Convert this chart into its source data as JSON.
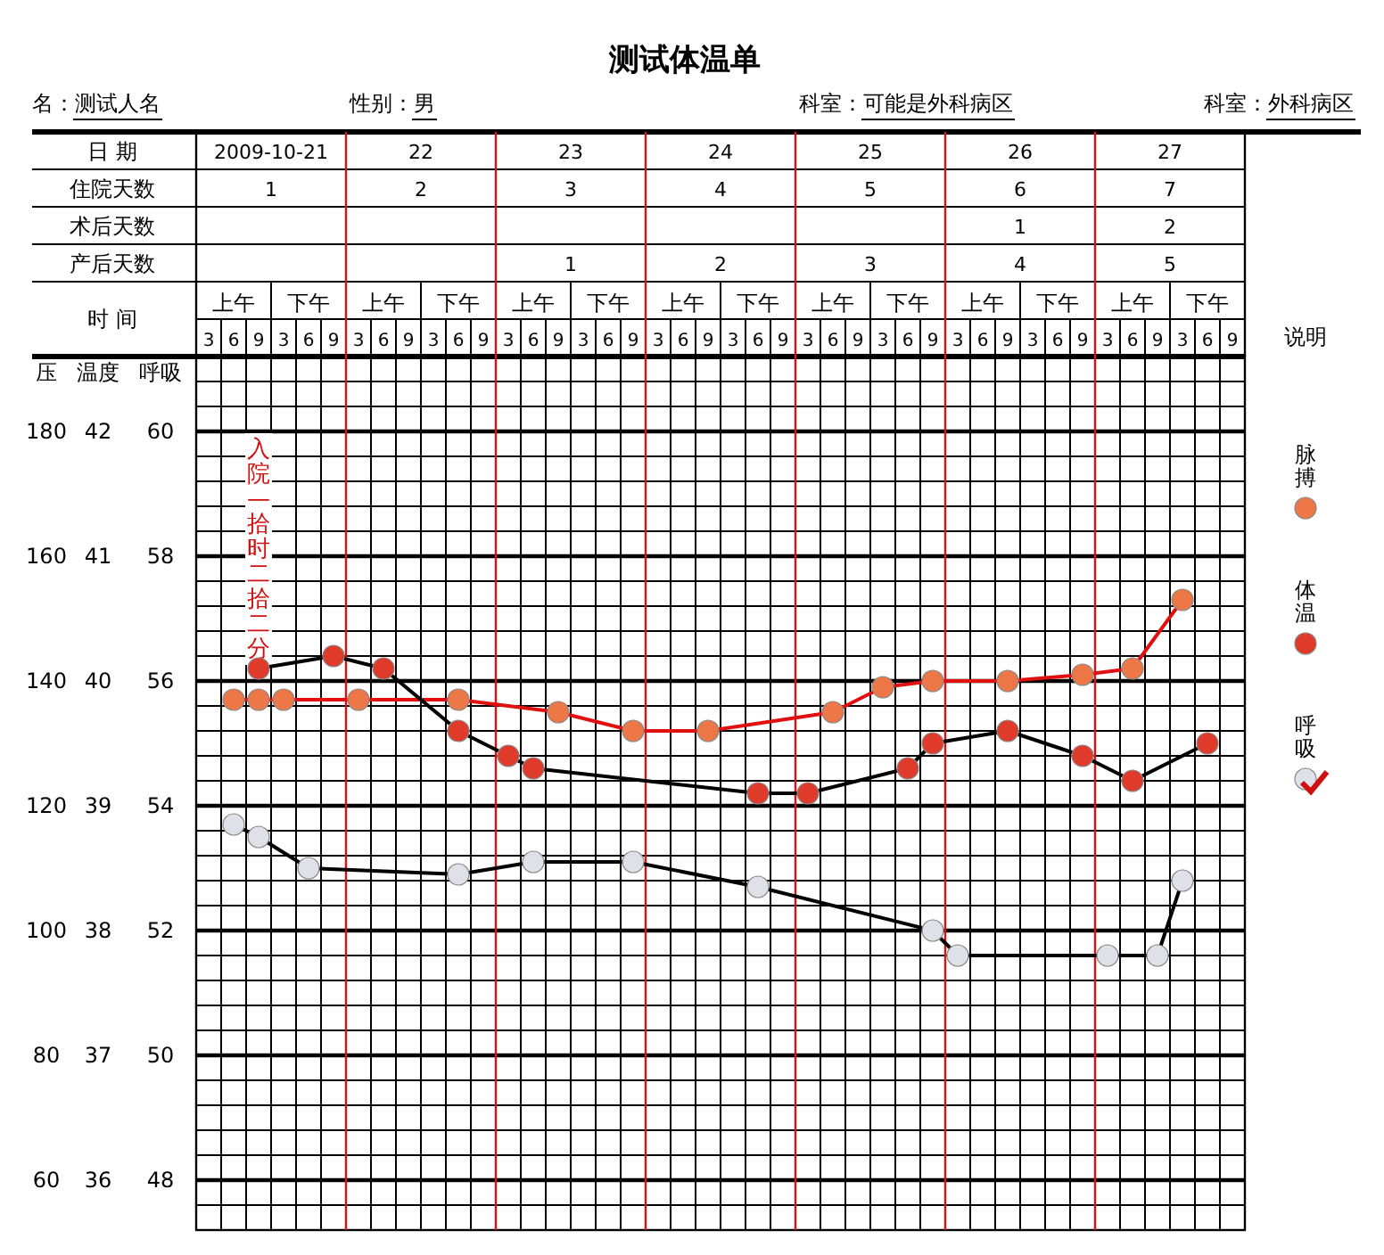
{
  "chart_data": {
    "type": "line",
    "title": "测试体温单",
    "categories": [
      "3",
      "6",
      "9",
      "3",
      "6",
      "9",
      "3",
      "6",
      "9",
      "3",
      "6",
      "9",
      "3",
      "6",
      "9",
      "3",
      "6",
      "9",
      "3",
      "6",
      "9",
      "3",
      "6",
      "9",
      "3",
      "6",
      "9",
      "3",
      "6",
      "9",
      "3",
      "6",
      "9",
      "3",
      "6",
      "9",
      "3",
      "6",
      "9",
      "3",
      "6",
      "9"
    ],
    "series": [
      {
        "name": "脉搏",
        "color": "#ee7748",
        "axis": "y3",
        "values": [
          null,
          137,
          137,
          137,
          null,
          null,
          137,
          null,
          null,
          null,
          137,
          null,
          null,
          null,
          135,
          null,
          null,
          132,
          null,
          null,
          132,
          null,
          null,
          null,
          null,
          135,
          null,
          139,
          null,
          140,
          null,
          null,
          140,
          null,
          null,
          141,
          null,
          142,
          null,
          153,
          null,
          null
        ]
      },
      {
        "name": "体温",
        "color": "#e03a2a",
        "values": [
          null,
          null,
          40.1,
          null,
          null,
          40.2,
          null,
          40.1,
          null,
          null,
          39.6,
          null,
          39.4,
          39.3,
          null,
          null,
          null,
          null,
          null,
          null,
          null,
          null,
          39.1,
          null,
          39.1,
          null,
          null,
          null,
          39.3,
          39.5,
          null,
          null,
          39.6,
          null,
          null,
          39.4,
          null,
          39.2,
          null,
          null,
          39.5,
          null
        ]
      },
      {
        "name": "呼吸",
        "color": "#dfe1e8",
        "axis": "y2",
        "values": [
          null,
          53.7,
          53.5,
          null,
          53.0,
          null,
          null,
          null,
          null,
          null,
          52.9,
          null,
          null,
          53.1,
          null,
          null,
          null,
          53.1,
          null,
          null,
          null,
          null,
          52.7,
          null,
          null,
          null,
          null,
          null,
          null,
          52.0,
          51.6,
          null,
          null,
          null,
          null,
          null,
          51.6,
          null,
          51.6,
          52.8,
          null,
          null
        ]
      }
    ],
    "ylabel": "温度",
    "ylim": [
      35.6,
      42.6
    ],
    "yticks": [
      36,
      37,
      38,
      39,
      40,
      41,
      42
    ],
    "y3label": "压",
    "y3lim": [
      52,
      192
    ],
    "y3ticks": [
      60,
      80,
      100,
      120,
      140,
      160,
      180
    ],
    "y2label": "呼吸",
    "y2lim": [
      47.2,
      61.2
    ],
    "y2ticks": [
      48,
      50,
      52,
      54,
      56,
      58,
      60
    ],
    "legend": "right",
    "legend_title": "说明",
    "marker": "circle",
    "grid": true,
    "annotations": [
      "名：测试人名",
      "性别：男",
      "科室：可能是外科病区",
      "科室：外科病区",
      "日 期",
      "2009-10-21",
      "22",
      "23",
      "24",
      "25",
      "26",
      "27",
      "住院天数",
      "1",
      "2",
      "3",
      "4",
      "5",
      "6",
      "7",
      "术后天数",
      null,
      null,
      null,
      null,
      null,
      "1",
      "2",
      "产后天数",
      null,
      null,
      "1",
      "2",
      "3",
      "4",
      "5",
      "时 间",
      "上午",
      "下午",
      "上午",
      "下午",
      "上午",
      "下午",
      "上午",
      "下午",
      "上午",
      "下午",
      "上午",
      "下午",
      "上午",
      "下午",
      "入院—拾时二拾二分"
    ]
  }
}
